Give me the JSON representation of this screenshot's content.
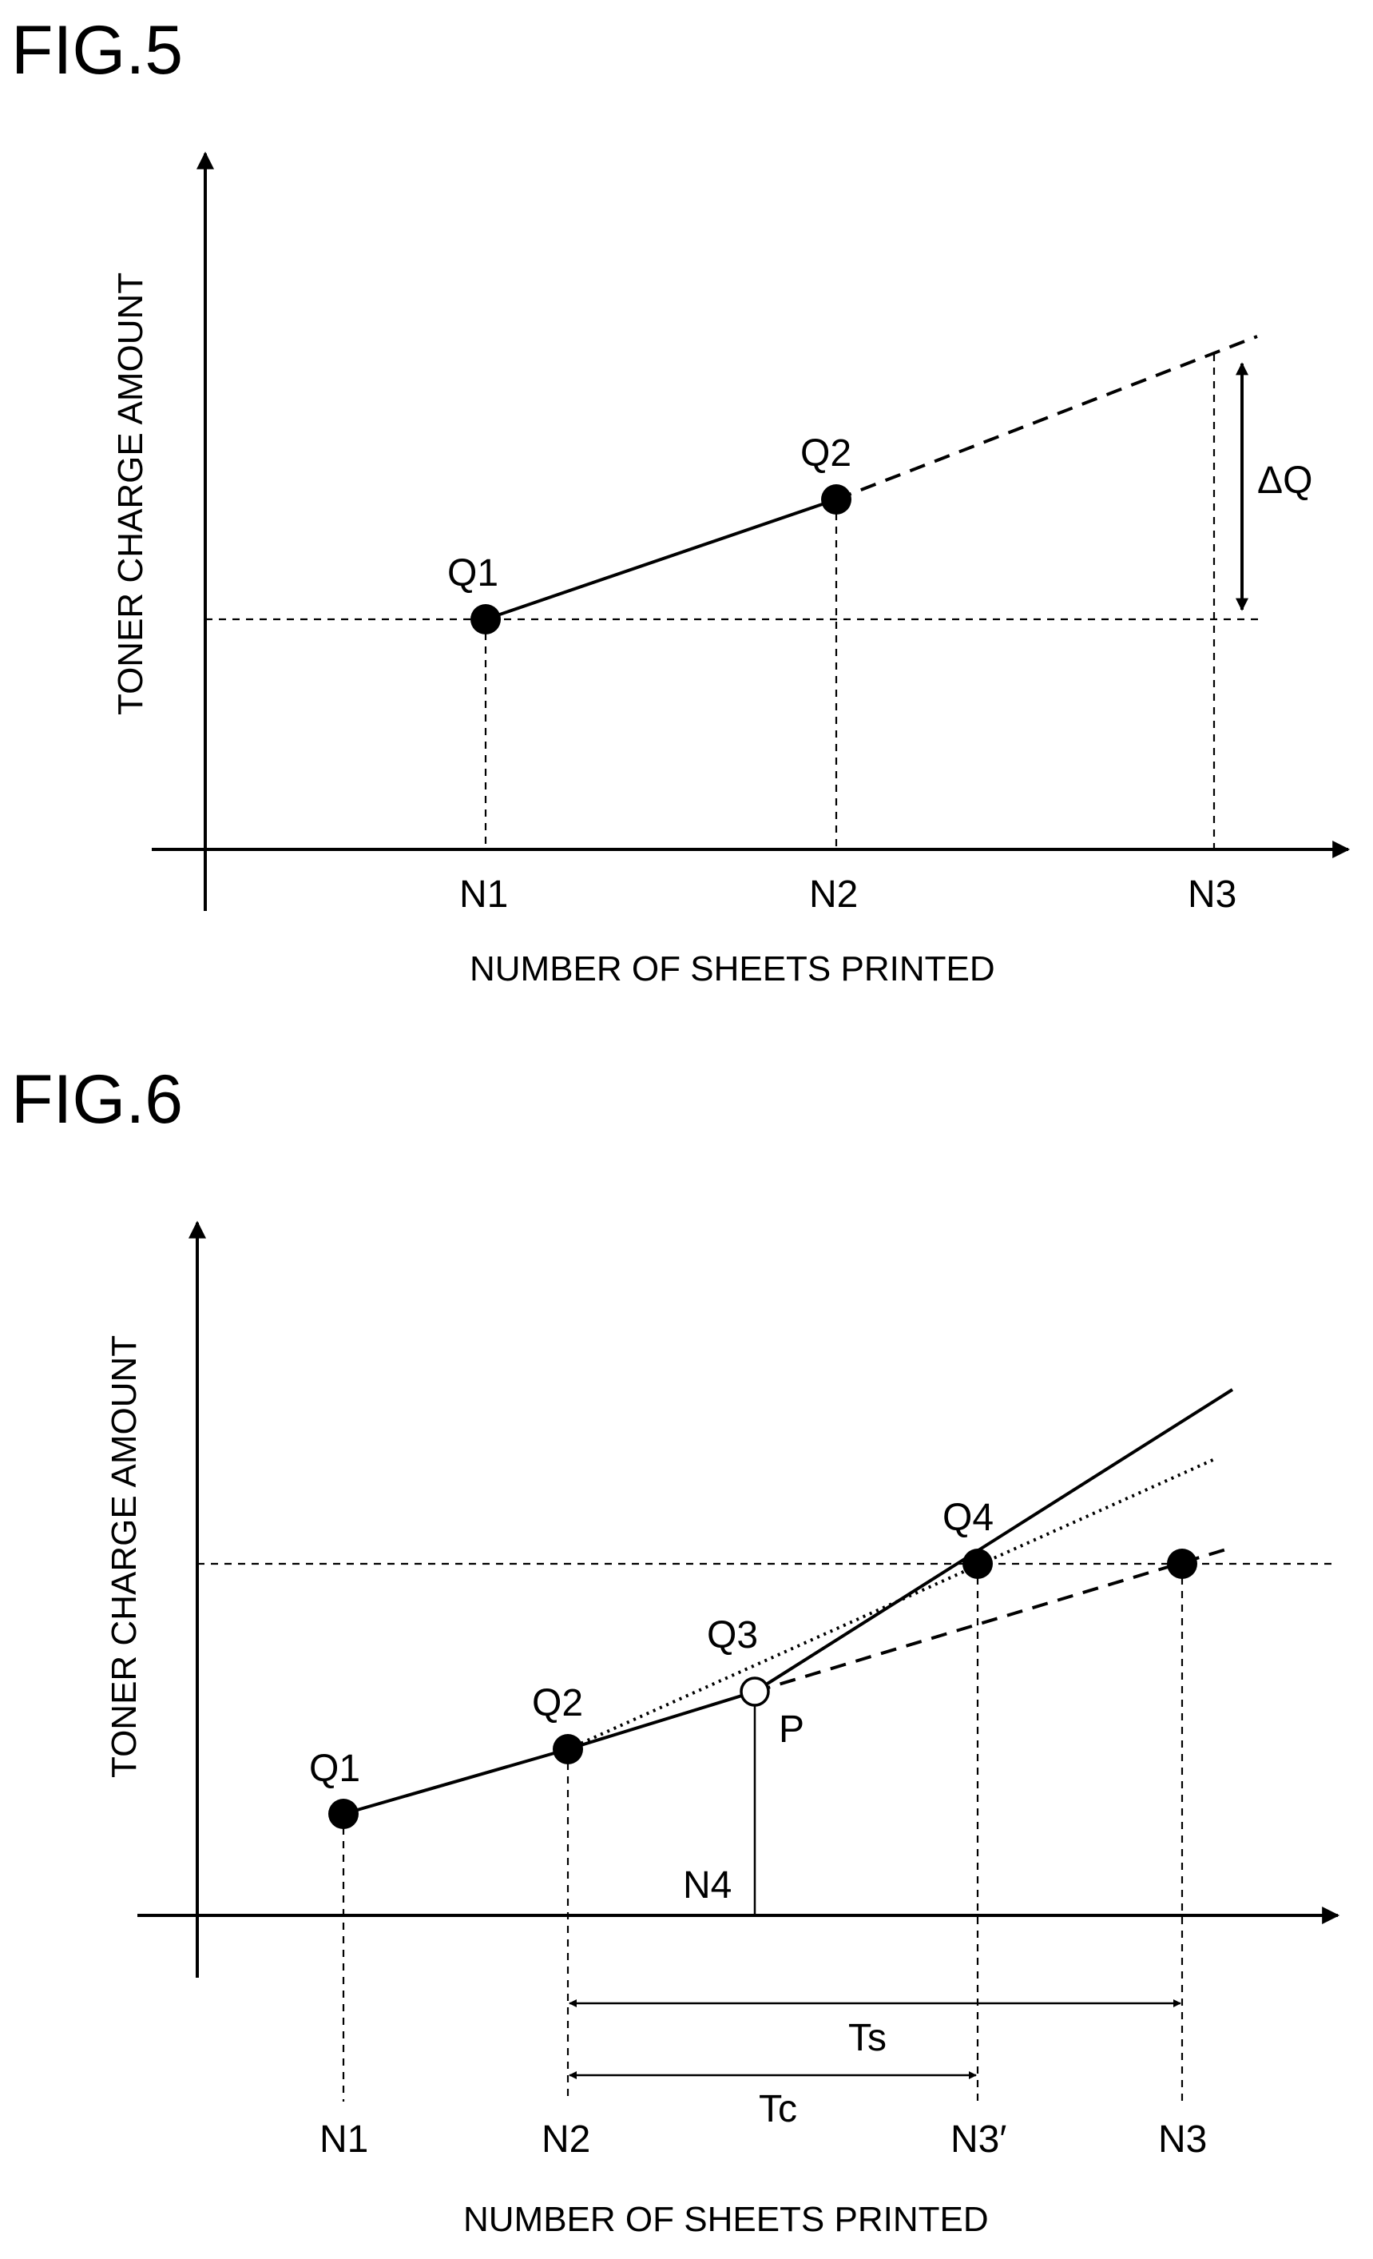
{
  "fig5": {
    "title": "FIG.5",
    "ylabel": "TONER CHARGE AMOUNT",
    "xlabel": "NUMBER OF SHEETS PRINTED",
    "points": {
      "q1": "Q1",
      "q2": "Q2"
    },
    "ticks": {
      "n1": "N1",
      "n2": "N2",
      "n3": "N3"
    },
    "delta": "ΔQ"
  },
  "fig6": {
    "title": "FIG.6",
    "ylabel": "TONER CHARGE AMOUNT",
    "xlabel": "NUMBER OF SHEETS PRINTED",
    "points": {
      "q1": "Q1",
      "q2": "Q2",
      "q3": "Q3",
      "q4": "Q4",
      "p": "P"
    },
    "ticks": {
      "n1": "N1",
      "n2": "N2",
      "n3p": "N3′",
      "n3": "N3",
      "n4": "N4"
    },
    "spans": {
      "ts": "Ts",
      "tc": "Tc"
    }
  }
}
